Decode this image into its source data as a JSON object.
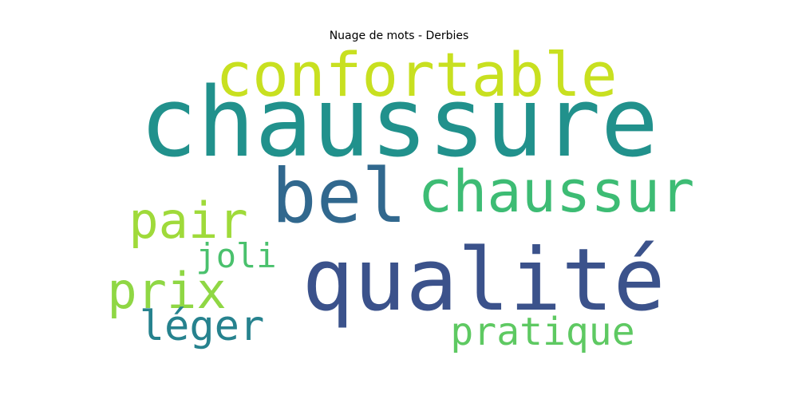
{
  "title": "Nuage de mots - Derbies",
  "chart_data": {
    "type": "wordcloud",
    "title": "Nuage de mots - Derbies",
    "words": [
      {
        "text": "chaussure",
        "weight": 1.0,
        "color": "#21918c"
      },
      {
        "text": "qualité",
        "weight": 0.95,
        "color": "#3b528b"
      },
      {
        "text": "bel",
        "weight": 0.8,
        "color": "#31688e"
      },
      {
        "text": "confortable",
        "weight": 0.65,
        "color": "#c8e020"
      },
      {
        "text": "chaussur",
        "weight": 0.62,
        "color": "#3dbc74"
      },
      {
        "text": "pair",
        "weight": 0.52,
        "color": "#9fda3a"
      },
      {
        "text": "prix",
        "weight": 0.52,
        "color": "#8fd744"
      },
      {
        "text": "léger",
        "weight": 0.45,
        "color": "#26828e"
      },
      {
        "text": "pratique",
        "weight": 0.42,
        "color": "#5ec962"
      },
      {
        "text": "joli",
        "weight": 0.38,
        "color": "#4ac16d"
      }
    ]
  }
}
